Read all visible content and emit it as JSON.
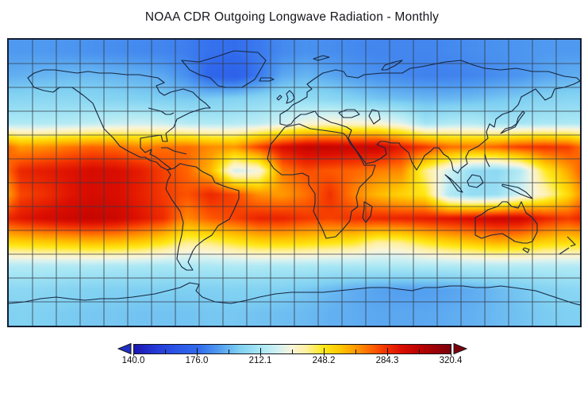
{
  "title": "NOAA CDR Outgoing Longwave Radiation - Monthly",
  "colorbar": {
    "labels": [
      "140.0",
      "176.0",
      "212.1",
      "248.2",
      "284.3",
      "320.4"
    ],
    "min": 140.0,
    "max": 320.4,
    "left_arrow_color": "#2130c4",
    "right_arrow_color": "#7c010c",
    "outline_color": "#15151a",
    "stops": [
      {
        "v": 140.0,
        "c": "#1c17b0"
      },
      {
        "v": 152.0,
        "c": "#2438d6"
      },
      {
        "v": 164.0,
        "c": "#2c55e6"
      },
      {
        "v": 176.0,
        "c": "#3069ec"
      },
      {
        "v": 188.0,
        "c": "#4f9af0"
      },
      {
        "v": 200.0,
        "c": "#7fd0f2"
      },
      {
        "v": 212.0,
        "c": "#a8e7f4"
      },
      {
        "v": 222.0,
        "c": "#d2f1f2"
      },
      {
        "v": 230.0,
        "c": "#faf5d8"
      },
      {
        "v": 238.0,
        "c": "#fff0a0"
      },
      {
        "v": 248.0,
        "c": "#ffe816"
      },
      {
        "v": 258.0,
        "c": "#ffc400"
      },
      {
        "v": 268.0,
        "c": "#ff9000"
      },
      {
        "v": 276.0,
        "c": "#ff5e00"
      },
      {
        "v": 284.0,
        "c": "#f03000"
      },
      {
        "v": 292.0,
        "c": "#dc0f00"
      },
      {
        "v": 302.0,
        "c": "#bc0200"
      },
      {
        "v": 312.0,
        "c": "#990007"
      },
      {
        "v": 320.4,
        "c": "#7c010c"
      }
    ]
  },
  "map": {
    "outline_color": "#17263f",
    "grid_color": "#343b47",
    "border_color": "#131d31",
    "grid_step_deg": 15
  },
  "chart_data": {
    "type": "heatmap",
    "title": "NOAA CDR Outgoing Longwave Radiation - Monthly",
    "projection": "equirectangular",
    "lon_range": [
      -180,
      180
    ],
    "lat_range": [
      -90,
      90
    ],
    "grid_deg": 15,
    "colorbar_range": [
      140.0,
      320.4
    ],
    "colorbar_tick_labels": [
      "140.0",
      "176.0",
      "212.1",
      "248.2",
      "284.3",
      "320.4"
    ],
    "lat_centers": [
      82.5,
      67.5,
      52.5,
      37.5,
      22.5,
      7.5,
      -7.5,
      -22.5,
      -37.5,
      -52.5,
      -67.5,
      -82.5
    ],
    "lon_centers": [
      -172.5,
      -157.5,
      -142.5,
      -127.5,
      -112.5,
      -97.5,
      -82.5,
      -67.5,
      -52.5,
      -37.5,
      -22.5,
      -7.5,
      7.5,
      22.5,
      37.5,
      52.5,
      67.5,
      82.5,
      97.5,
      112.5,
      127.5,
      142.5,
      157.5,
      172.5
    ],
    "values": [
      [
        188,
        188,
        187,
        186,
        185,
        184,
        183,
        181,
        178,
        177,
        180,
        184,
        186,
        185,
        184,
        183,
        183,
        183,
        184,
        185,
        186,
        187,
        188,
        188
      ],
      [
        193,
        194,
        195,
        195,
        194,
        193,
        191,
        185,
        174,
        171,
        180,
        191,
        194,
        191,
        188,
        186,
        184,
        182,
        182,
        183,
        185,
        187,
        190,
        192
      ],
      [
        203,
        204,
        204,
        203,
        202,
        201,
        200,
        199,
        200,
        202,
        204,
        206,
        206,
        204,
        201,
        198,
        196,
        195,
        195,
        196,
        198,
        200,
        202,
        203
      ],
      [
        214,
        214,
        215,
        217,
        219,
        221,
        219,
        215,
        214,
        215,
        217,
        222,
        229,
        232,
        231,
        230,
        224,
        210,
        214,
        215,
        210,
        211,
        212,
        213
      ],
      [
        266,
        268,
        272,
        275,
        274,
        270,
        273,
        274,
        269,
        267,
        281,
        293,
        299,
        299,
        297,
        298,
        289,
        283,
        274,
        272,
        276,
        282,
        284,
        282
      ],
      [
        286,
        289,
        291,
        294,
        293,
        289,
        281,
        275,
        260,
        222,
        228,
        271,
        279,
        277,
        275,
        271,
        269,
        240,
        222,
        206,
        204,
        215,
        246,
        264
      ],
      [
        280,
        284,
        290,
        294,
        293,
        288,
        282,
        278,
        286,
        280,
        268,
        266,
        273,
        284,
        270,
        260,
        254,
        248,
        214,
        206,
        208,
        222,
        234,
        252
      ],
      [
        290,
        294,
        297,
        299,
        297,
        291,
        285,
        269,
        277,
        281,
        287,
        287,
        283,
        281,
        284,
        286,
        287,
        289,
        291,
        294,
        297,
        296,
        287,
        282
      ],
      [
        254,
        256,
        258,
        260,
        259,
        256,
        250,
        240,
        242,
        248,
        253,
        254,
        252,
        250,
        248,
        238,
        240,
        248,
        254,
        258,
        262,
        260,
        254,
        252
      ],
      [
        215,
        215,
        214,
        214,
        213,
        213,
        212,
        213,
        213,
        214,
        214,
        213,
        213,
        212,
        212,
        213,
        213,
        214,
        214,
        215,
        215,
        215,
        215,
        215
      ],
      [
        204,
        203,
        202,
        201,
        200,
        200,
        200,
        200,
        200,
        201,
        201,
        200,
        198,
        195,
        192,
        190,
        189,
        189,
        190,
        192,
        195,
        198,
        201,
        203
      ],
      [
        201,
        200,
        199,
        198,
        198,
        197,
        197,
        197,
        198,
        198,
        197,
        196,
        195,
        193,
        192,
        191,
        191,
        191,
        192,
        193,
        195,
        197,
        199,
        200
      ]
    ]
  }
}
